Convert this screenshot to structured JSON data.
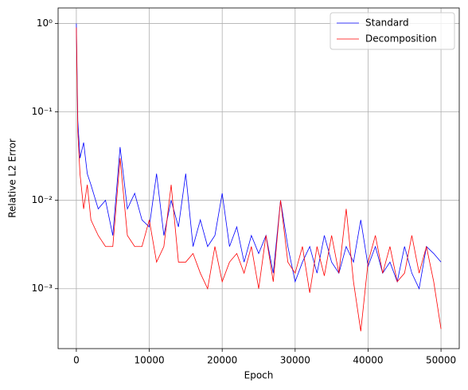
{
  "chart_data": {
    "type": "line",
    "xlabel": "Epoch",
    "ylabel": "Relative L2 Error",
    "log_y": true,
    "grid": true,
    "legend": "upper right",
    "x": [
      0,
      200,
      500,
      1000,
      1500,
      2000,
      3000,
      4000,
      5000,
      6000,
      7000,
      8000,
      9000,
      10000,
      11000,
      12000,
      13000,
      14000,
      15000,
      16000,
      17000,
      18000,
      19000,
      20000,
      21000,
      22000,
      23000,
      24000,
      25000,
      26000,
      27000,
      28000,
      29000,
      30000,
      31000,
      32000,
      33000,
      34000,
      35000,
      36000,
      37000,
      38000,
      39000,
      40000,
      41000,
      42000,
      43000,
      44000,
      45000,
      46000,
      47000,
      48000,
      49000,
      50000
    ],
    "series": [
      {
        "name": "Standard",
        "color": "#0000ff",
        "values": [
          1.0,
          0.08,
          0.03,
          0.045,
          0.02,
          0.015,
          0.008,
          0.01,
          0.004,
          0.04,
          0.008,
          0.012,
          0.006,
          0.005,
          0.02,
          0.004,
          0.01,
          0.005,
          0.02,
          0.003,
          0.006,
          0.003,
          0.004,
          0.012,
          0.003,
          0.005,
          0.002,
          0.004,
          0.0025,
          0.004,
          0.0015,
          0.01,
          0.003,
          0.0012,
          0.002,
          0.003,
          0.0015,
          0.004,
          0.002,
          0.0015,
          0.003,
          0.002,
          0.006,
          0.0018,
          0.003,
          0.0015,
          0.002,
          0.0012,
          0.003,
          0.0015,
          0.001,
          0.003,
          0.0025,
          0.002
        ]
      },
      {
        "name": "Decomposition",
        "color": "#ff0000",
        "values": [
          0.9,
          0.06,
          0.02,
          0.008,
          0.015,
          0.006,
          0.004,
          0.003,
          0.003,
          0.03,
          0.004,
          0.003,
          0.003,
          0.006,
          0.002,
          0.003,
          0.015,
          0.002,
          0.002,
          0.0025,
          0.0015,
          0.001,
          0.003,
          0.0012,
          0.002,
          0.0025,
          0.0015,
          0.003,
          0.001,
          0.004,
          0.0012,
          0.01,
          0.002,
          0.0015,
          0.003,
          0.0009,
          0.003,
          0.0014,
          0.004,
          0.0015,
          0.008,
          0.0012,
          0.00033,
          0.002,
          0.004,
          0.0015,
          0.003,
          0.0012,
          0.0015,
          0.004,
          0.0015,
          0.003,
          0.0012,
          0.00035
        ]
      }
    ],
    "xlim": [
      -2500,
      52500
    ],
    "xticks": [
      0,
      10000,
      20000,
      30000,
      40000,
      50000
    ],
    "ylim": [
      0.00021,
      1.5
    ],
    "yticks": [
      {
        "value": 0.001,
        "label": "10⁻³"
      },
      {
        "value": 0.01,
        "label": "10⁻²"
      },
      {
        "value": 0.1,
        "label": "10⁻¹"
      },
      {
        "value": 1,
        "label": "10⁰"
      }
    ]
  }
}
